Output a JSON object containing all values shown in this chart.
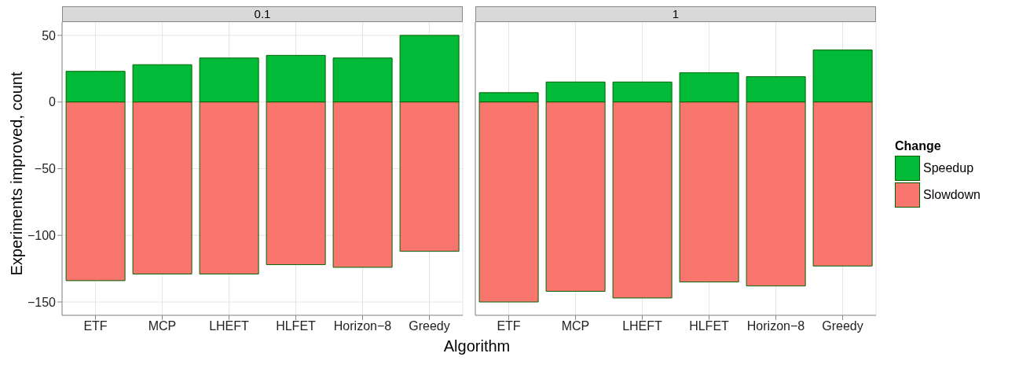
{
  "chart_data": [
    {
      "type": "bar",
      "title": "0.1",
      "ylabel": "Experiments improved, count",
      "xlabel": "Algorithm",
      "categories": [
        "ETF",
        "MCP",
        "LHEFT",
        "HLFET",
        "Horizon−8",
        "Greedy"
      ],
      "stacked": true,
      "ylim": [
        -160,
        60
      ],
      "yticks": [
        -150,
        -100,
        -50,
        0,
        50
      ],
      "grid": true,
      "legend": "right",
      "legend_title": "Change",
      "series": [
        {
          "name": "Speedup",
          "color": "#00ba38",
          "values": [
            23,
            28,
            33,
            35,
            33,
            50
          ]
        },
        {
          "name": "Slowdown",
          "color": "#f8766d",
          "values": [
            -134,
            -129,
            -129,
            -122,
            -124,
            -112
          ]
        }
      ]
    },
    {
      "type": "bar",
      "title": "1",
      "categories": [
        "ETF",
        "MCP",
        "LHEFT",
        "HLFET",
        "Horizon−8",
        "Greedy"
      ],
      "stacked": true,
      "ylim": [
        -160,
        60
      ],
      "yticks": [
        -150,
        -100,
        -50,
        0,
        50
      ],
      "grid": true,
      "legend": "right",
      "tick_labels": "x",
      "series": [
        {
          "color": "#00ba38",
          "values": [
            7,
            15,
            15,
            22,
            19,
            39
          ]
        },
        {
          "color": "#f8766d",
          "values": [
            -150,
            -142,
            -147,
            -135,
            -138,
            -123
          ]
        }
      ]
    }
  ]
}
